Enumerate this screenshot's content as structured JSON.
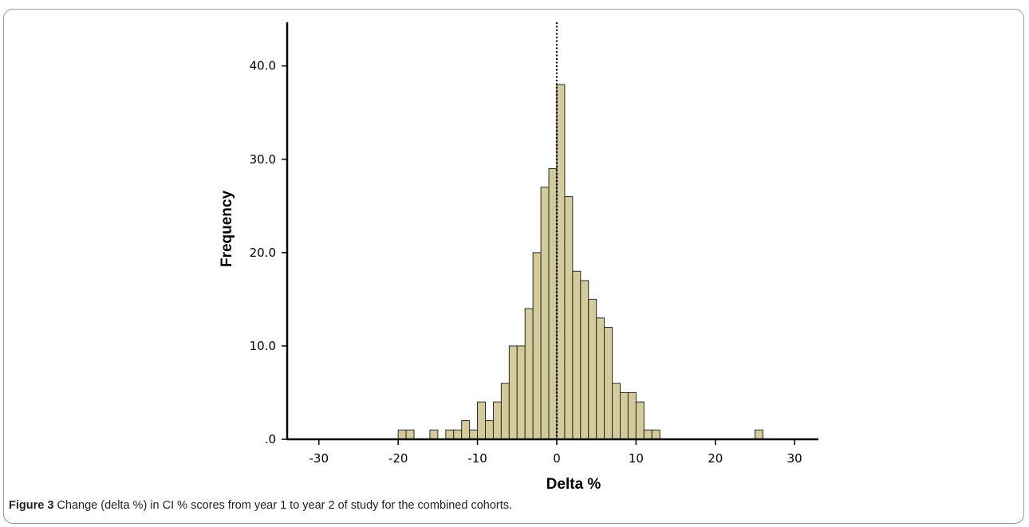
{
  "figure": {
    "label": "Figure 3",
    "caption": " Change (delta %) in CI % scores from year 1 to year 2 of study for the combined cohorts."
  },
  "colors": {
    "bar_fill": "#d3cc9a",
    "bar_stroke": "#2b2b2b",
    "axis": "#000000"
  },
  "chart_data": {
    "type": "bar",
    "subtype": "histogram",
    "xlabel": "Delta %",
    "ylabel": "Frequency",
    "xlim": [
      -34,
      33
    ],
    "ylim": [
      0,
      44.5
    ],
    "xticks": [
      -30,
      -20,
      -10,
      0,
      10,
      20,
      30
    ],
    "xtick_labels": [
      "-30",
      "-20",
      "-10",
      "0",
      "10",
      "20",
      "30"
    ],
    "yticks": [
      0,
      10,
      20,
      30,
      40
    ],
    "ytick_labels": [
      ".0",
      "10.0",
      "20.0",
      "30.0",
      "40.0"
    ],
    "reference_line": {
      "x": 0,
      "style": "dotted"
    },
    "bin_width": 1,
    "bins": [
      {
        "x0": -20,
        "x1": -19,
        "count": 1
      },
      {
        "x0": -19,
        "x1": -18,
        "count": 1
      },
      {
        "x0": -16,
        "x1": -15,
        "count": 1
      },
      {
        "x0": -14,
        "x1": -13,
        "count": 1
      },
      {
        "x0": -13,
        "x1": -12,
        "count": 1
      },
      {
        "x0": -12,
        "x1": -11,
        "count": 2
      },
      {
        "x0": -11,
        "x1": -10,
        "count": 1
      },
      {
        "x0": -10,
        "x1": -9,
        "count": 4
      },
      {
        "x0": -9,
        "x1": -8,
        "count": 2
      },
      {
        "x0": -8,
        "x1": -7,
        "count": 4
      },
      {
        "x0": -7,
        "x1": -6,
        "count": 6
      },
      {
        "x0": -6,
        "x1": -5,
        "count": 10
      },
      {
        "x0": -5,
        "x1": -4,
        "count": 10
      },
      {
        "x0": -4,
        "x1": -3,
        "count": 14
      },
      {
        "x0": -3,
        "x1": -2,
        "count": 20
      },
      {
        "x0": -2,
        "x1": -1,
        "count": 27
      },
      {
        "x0": -1,
        "x1": 0,
        "count": 29
      },
      {
        "x0": 0,
        "x1": 1,
        "count": 38
      },
      {
        "x0": 1,
        "x1": 2,
        "count": 26
      },
      {
        "x0": 2,
        "x1": 3,
        "count": 18
      },
      {
        "x0": 3,
        "x1": 4,
        "count": 17
      },
      {
        "x0": 4,
        "x1": 5,
        "count": 15
      },
      {
        "x0": 5,
        "x1": 6,
        "count": 13
      },
      {
        "x0": 6,
        "x1": 7,
        "count": 12
      },
      {
        "x0": 7,
        "x1": 8,
        "count": 6
      },
      {
        "x0": 8,
        "x1": 9,
        "count": 5
      },
      {
        "x0": 9,
        "x1": 10,
        "count": 5
      },
      {
        "x0": 10,
        "x1": 11,
        "count": 4
      },
      {
        "x0": 11,
        "x1": 12,
        "count": 1
      },
      {
        "x0": 12,
        "x1": 13,
        "count": 1
      },
      {
        "x0": 25,
        "x1": 26,
        "count": 1
      }
    ]
  }
}
